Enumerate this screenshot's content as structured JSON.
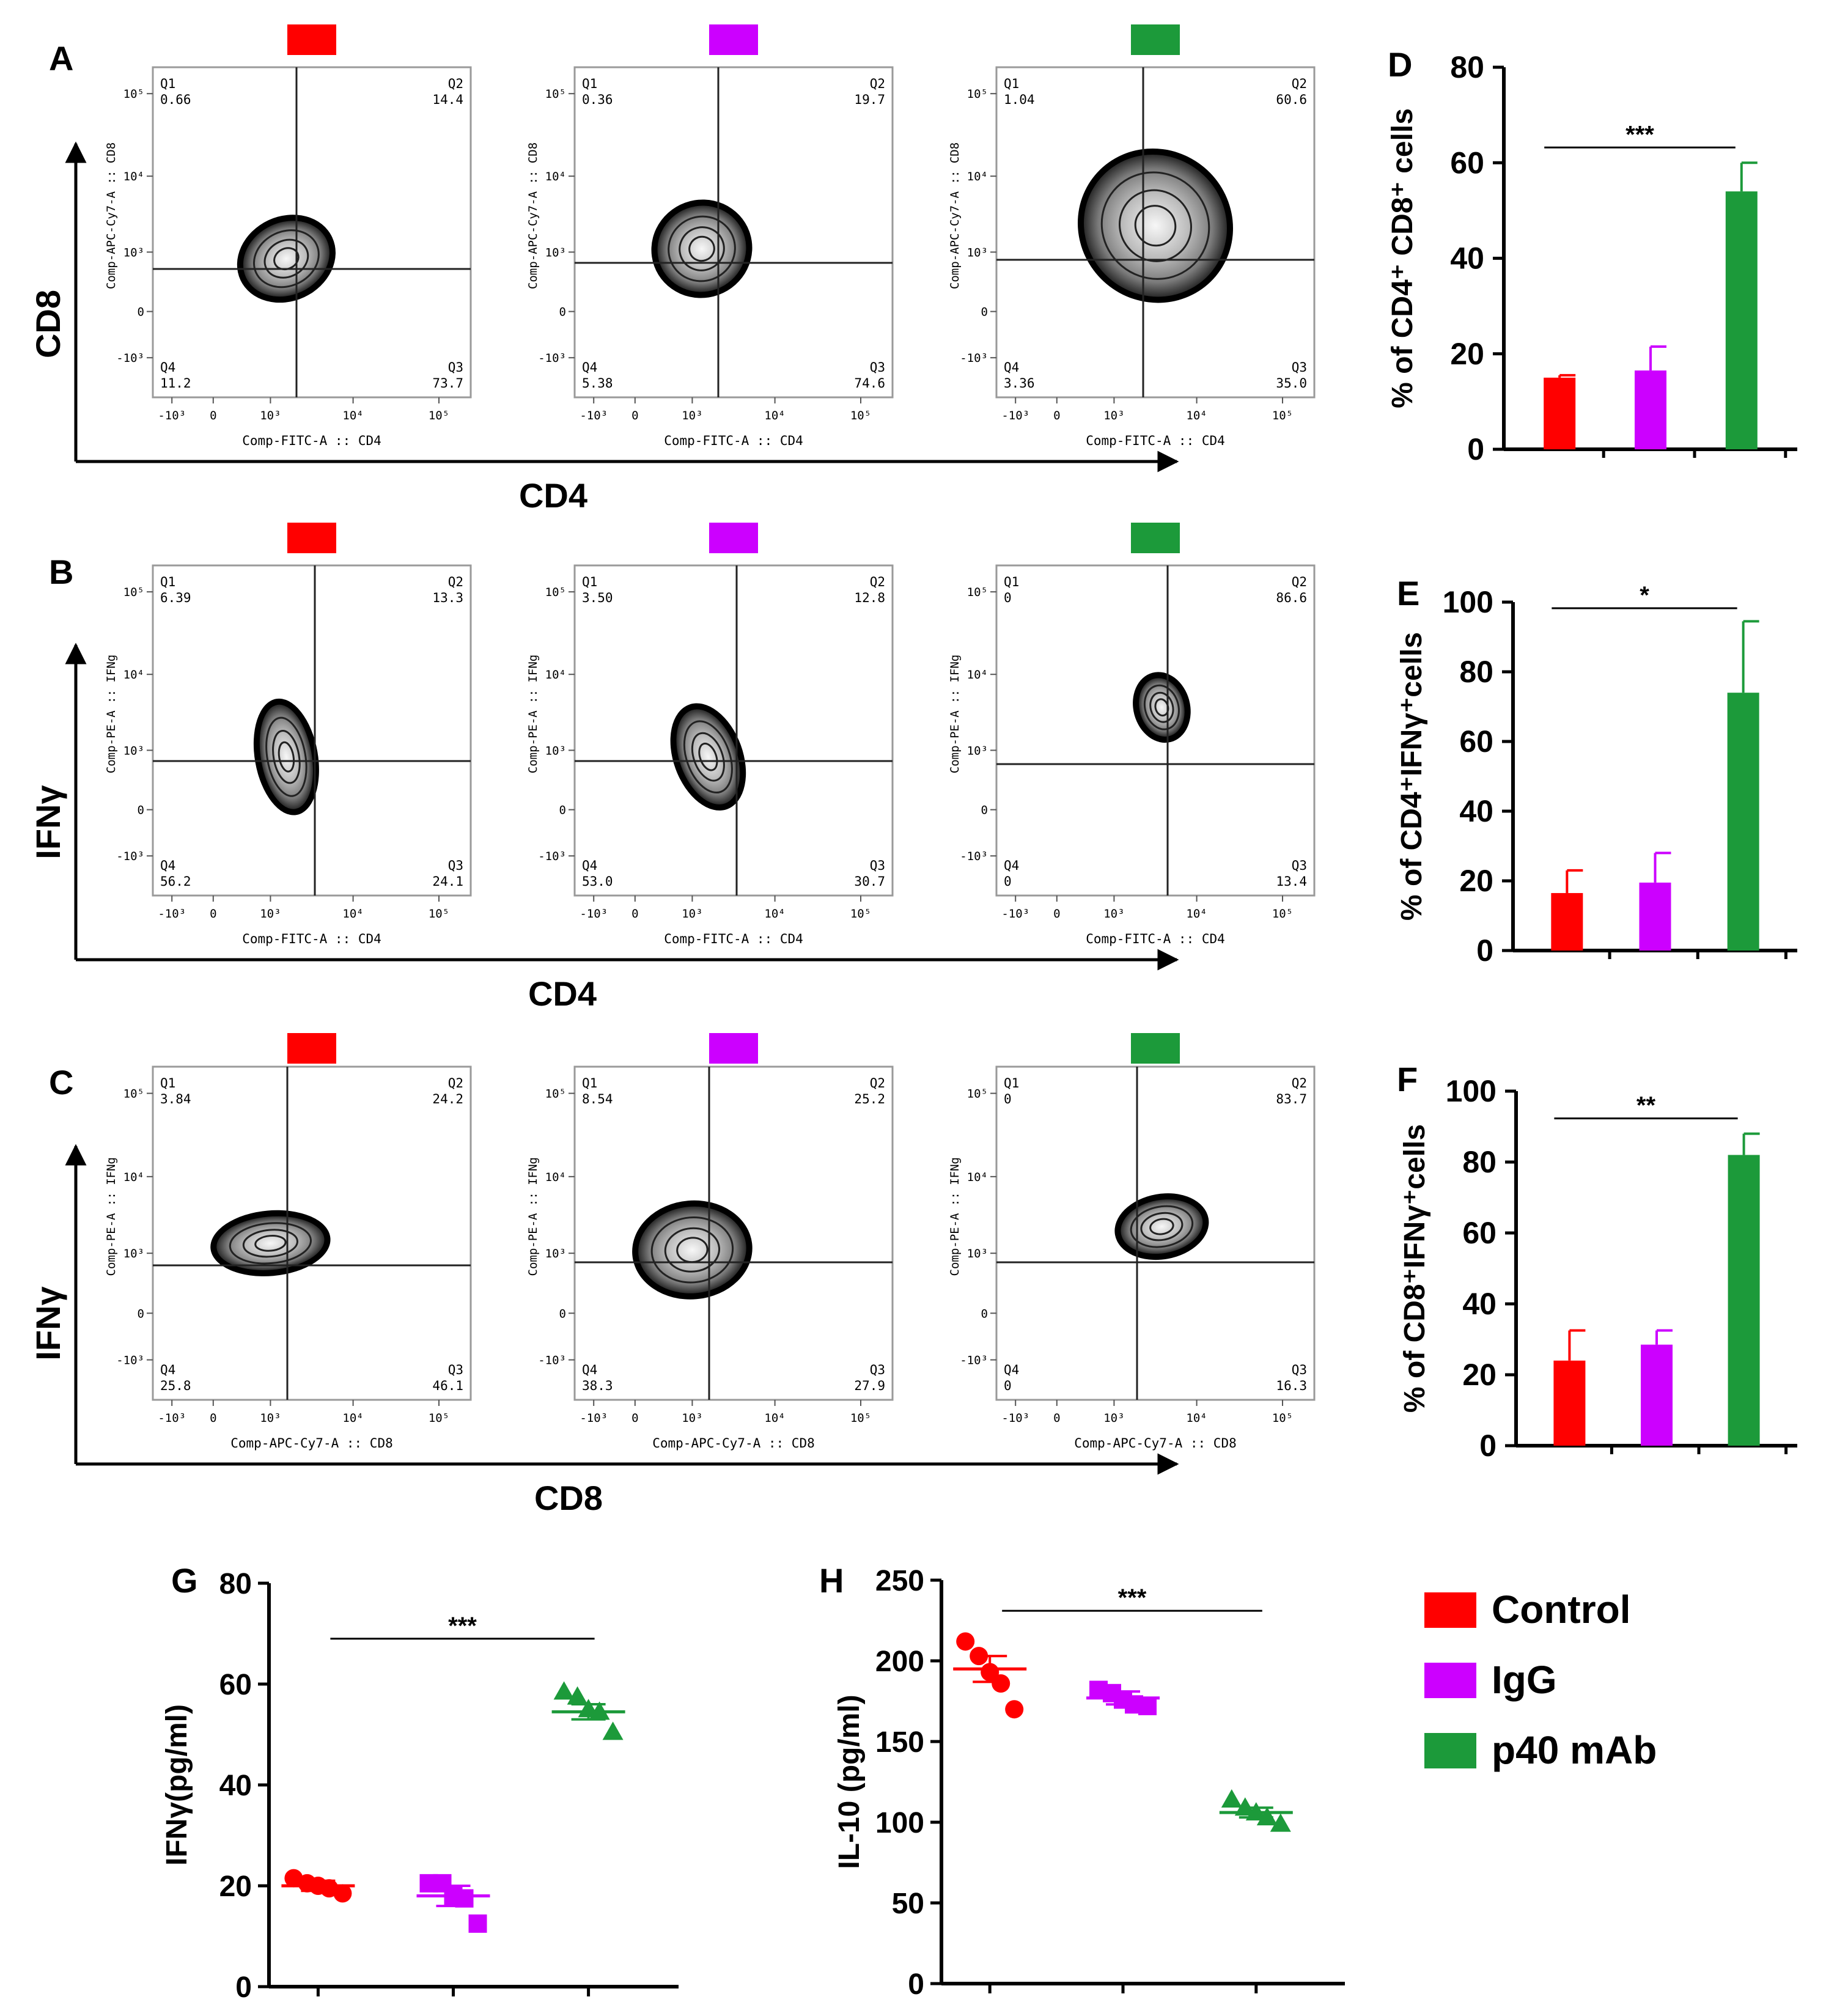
{
  "panel_labels": {
    "A": "A",
    "B": "B",
    "C": "C",
    "D": "D",
    "E": "E",
    "F": "F",
    "G": "G",
    "H": "H"
  },
  "colors": {
    "control": "#ff0000",
    "igg": "#cc00ff",
    "p40": "#1c9a3a"
  },
  "legend": {
    "items": [
      {
        "label": "Control",
        "color": "#ff0000"
      },
      {
        "label": "IgG",
        "color": "#cc00ff"
      },
      {
        "label": "p40 mAb",
        "color": "#1c9a3a"
      }
    ]
  },
  "flow_rows": [
    {
      "id": "A",
      "y_title": "CD8",
      "x_title": "CD4",
      "x_channel": "Comp-FITC-A :: CD4",
      "y_channel": "Comp-APC-Cy7-A :: CD8",
      "plots": [
        {
          "group": "control",
          "Q1": "0.66",
          "Q2": "14.4",
          "Q3": "73.7",
          "Q4": "11.2"
        },
        {
          "group": "igg",
          "Q1": "0.36",
          "Q2": "19.7",
          "Q3": "74.6",
          "Q4": "5.38"
        },
        {
          "group": "p40",
          "Q1": "1.04",
          "Q2": "60.6",
          "Q3": "35.0",
          "Q4": "3.36"
        }
      ]
    },
    {
      "id": "B",
      "y_title": "IFNγ",
      "x_title": "CD4",
      "x_channel": "Comp-FITC-A :: CD4",
      "y_channel": "Comp-PE-A :: IFNg",
      "plots": [
        {
          "group": "control",
          "Q1": "6.39",
          "Q2": "13.3",
          "Q3": "24.1",
          "Q4": "56.2"
        },
        {
          "group": "igg",
          "Q1": "3.50",
          "Q2": "12.8",
          "Q3": "30.7",
          "Q4": "53.0"
        },
        {
          "group": "p40",
          "Q1": "0",
          "Q2": "86.6",
          "Q3": "13.4",
          "Q4": "0"
        }
      ]
    },
    {
      "id": "C",
      "y_title": "IFNγ",
      "x_title": "CD8",
      "x_channel": "Comp-APC-Cy7-A :: CD8",
      "y_channel": "Comp-PE-A :: IFNg",
      "plots": [
        {
          "group": "control",
          "Q1": "3.84",
          "Q2": "24.2",
          "Q3": "46.1",
          "Q4": "25.8"
        },
        {
          "group": "igg",
          "Q1": "8.54",
          "Q2": "25.2",
          "Q3": "27.9",
          "Q4": "38.3"
        },
        {
          "group": "p40",
          "Q1": "0",
          "Q2": "83.7",
          "Q3": "16.3",
          "Q4": "0"
        }
      ]
    }
  ],
  "chart_data": [
    {
      "id": "D",
      "type": "bar",
      "ylabel": "% of CD4⁺ CD8⁺ cells",
      "ylim": [
        0,
        80
      ],
      "yticks": [
        0,
        20,
        40,
        60,
        80
      ],
      "categories": [
        "Control",
        "IgG",
        "p40 mAb"
      ],
      "values": [
        15,
        16.5,
        54
      ],
      "errors": [
        0.5,
        5,
        6
      ],
      "significance": "***"
    },
    {
      "id": "E",
      "type": "bar",
      "ylabel": "% of CD4⁺IFNγ⁺cells",
      "ylim": [
        0,
        100
      ],
      "yticks": [
        0,
        20,
        40,
        60,
        80,
        100
      ],
      "categories": [
        "Control",
        "IgG",
        "p40 mAb"
      ],
      "values": [
        16.5,
        19.5,
        74
      ],
      "errors": [
        6.5,
        8.5,
        20.5
      ],
      "significance": "*"
    },
    {
      "id": "F",
      "type": "bar",
      "ylabel": "% of CD8⁺IFNγ⁺cells",
      "ylim": [
        0,
        100
      ],
      "yticks": [
        0,
        20,
        40,
        60,
        80,
        100
      ],
      "categories": [
        "Control",
        "IgG",
        "p40 mAb"
      ],
      "values": [
        24,
        28.5,
        82
      ],
      "errors": [
        8.5,
        4,
        6
      ],
      "significance": "**"
    },
    {
      "id": "G",
      "type": "scatter",
      "ylabel": "IFNγ(pg/ml)",
      "ylim": [
        0,
        80
      ],
      "yticks": [
        0,
        20,
        40,
        60,
        80
      ],
      "categories": [
        "Control",
        "IgG",
        "p40 mAb"
      ],
      "series": [
        {
          "name": "Control",
          "marker": "circle",
          "mean": 20,
          "sem": 1,
          "points": [
            21.5,
            20.5,
            20,
            19.5,
            18.5
          ]
        },
        {
          "name": "IgG",
          "marker": "square",
          "mean": 18,
          "sem": 2,
          "points": [
            20.5,
            20.5,
            18,
            17.5,
            12.5
          ]
        },
        {
          "name": "p40 mAb",
          "marker": "triangle",
          "mean": 54.5,
          "sem": 1.5,
          "points": [
            58.5,
            57.5,
            55,
            54.5,
            50.5
          ]
        }
      ],
      "significance": "***"
    },
    {
      "id": "H",
      "type": "scatter",
      "ylabel": "IL-10 (pg/ml)",
      "ylim": [
        0,
        250
      ],
      "yticks": [
        0,
        50,
        100,
        150,
        200,
        250
      ],
      "categories": [
        "Control",
        "IgG",
        "p40 mAb"
      ],
      "series": [
        {
          "name": "Control",
          "marker": "circle",
          "mean": 195,
          "sem": 8,
          "points": [
            212,
            203,
            193,
            186,
            170
          ]
        },
        {
          "name": "IgG",
          "marker": "square",
          "mean": 177,
          "sem": 4,
          "points": [
            182,
            180,
            176,
            173,
            172
          ]
        },
        {
          "name": "p40 mAb",
          "marker": "triangle",
          "mean": 106,
          "sem": 3,
          "points": [
            114,
            109,
            106,
            103,
            99
          ]
        }
      ],
      "significance": "***"
    }
  ]
}
